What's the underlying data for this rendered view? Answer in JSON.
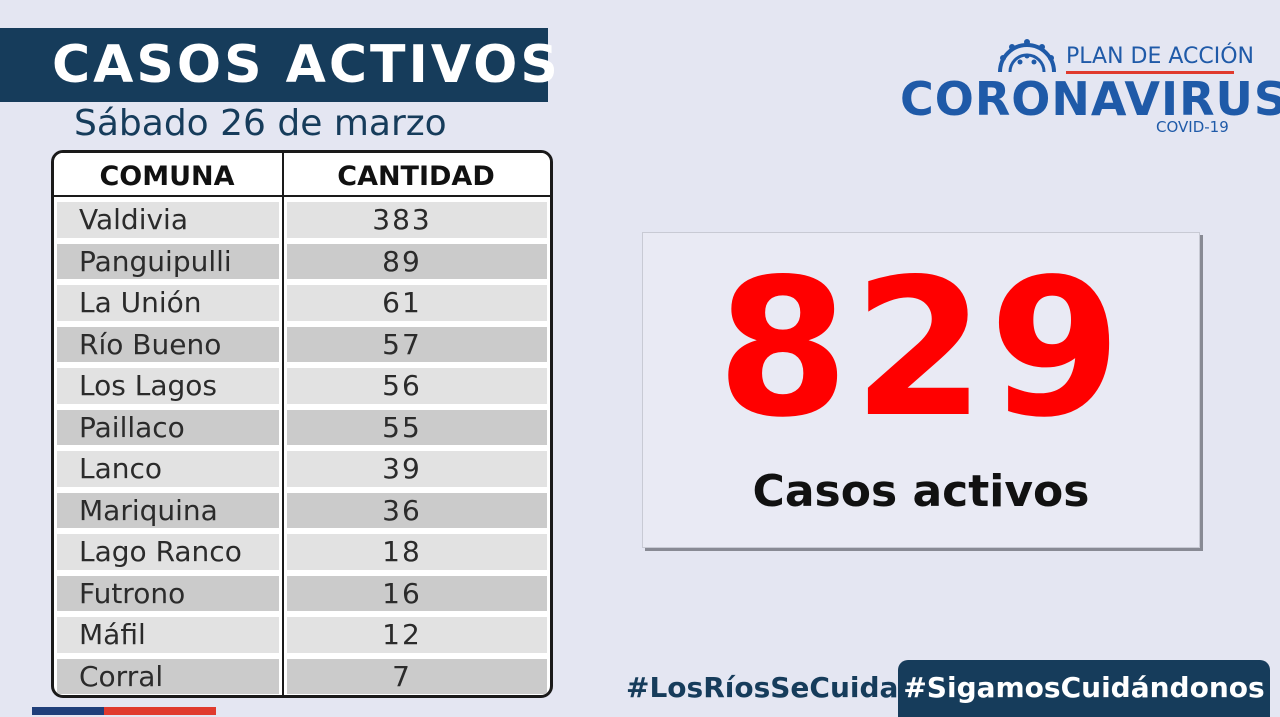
{
  "header": {
    "title": "CASOS ACTIVOS",
    "date": "Sábado 26 de marzo"
  },
  "table": {
    "columns": [
      "COMUNA",
      "CANTIDAD"
    ],
    "rows": [
      {
        "comuna": "Valdivia",
        "cantidad": "383"
      },
      {
        "comuna": "Panguipulli",
        "cantidad": "89"
      },
      {
        "comuna": "La Unión",
        "cantidad": "61"
      },
      {
        "comuna": "Río Bueno",
        "cantidad": "57"
      },
      {
        "comuna": "Los Lagos",
        "cantidad": "56"
      },
      {
        "comuna": "Paillaco",
        "cantidad": "55"
      },
      {
        "comuna": "Lanco",
        "cantidad": "39"
      },
      {
        "comuna": "Mariquina",
        "cantidad": "36"
      },
      {
        "comuna": "Lago Ranco",
        "cantidad": "18"
      },
      {
        "comuna": "Futrono",
        "cantidad": "16"
      },
      {
        "comuna": "Máfil",
        "cantidad": "12"
      },
      {
        "comuna": "Corral",
        "cantidad": "7"
      }
    ]
  },
  "summary": {
    "total": "829",
    "label": "Casos activos"
  },
  "logo": {
    "plan": "PLAN DE ACCIÓN",
    "name": "CORONAVIRUS",
    "sub": "COVID-19"
  },
  "hashtags": {
    "left": "#LosRíosSeCuida",
    "right": "#SigamosCuidándonos"
  },
  "colors": {
    "navy": "#163c5b",
    "brand_blue": "#1f5aa8",
    "total_red": "#ff0000",
    "accent_red": "#e03a2e",
    "background": "#e4e6f2"
  },
  "icons": [
    "coronavirus-icon"
  ]
}
